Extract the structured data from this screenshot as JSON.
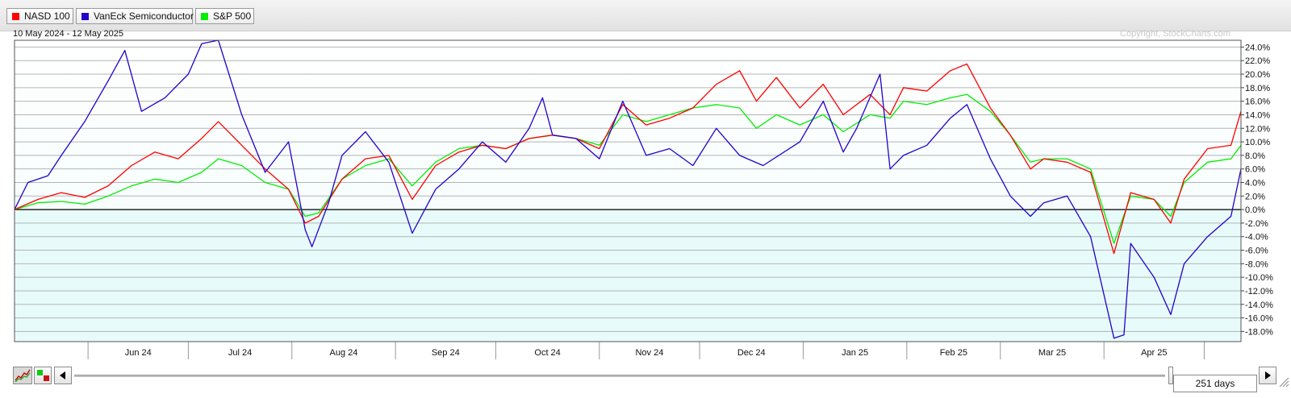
{
  "legend": [
    {
      "label": "NASD 100",
      "color": "#ff0000"
    },
    {
      "label": "VanEck Semiconductor",
      "color": "#2200cc"
    },
    {
      "label": "S&P 500",
      "color": "#00ee00"
    }
  ],
  "date_range": "10 May 2024 - 12 May 2025",
  "copyright": "Copyright, StockCharts.com",
  "period_label": "251 days",
  "chart_data": {
    "type": "line",
    "title": "",
    "x_range": [
      "2024-05-10",
      "2025-05-12"
    ],
    "x_tick_labels": [
      "Jun 24",
      "Jul 24",
      "Aug 24",
      "Sep 24",
      "Oct 24",
      "Nov 24",
      "Dec 24",
      "Jan 25",
      "Feb 25",
      "Mar 25",
      "Apr 25"
    ],
    "y_tick_labels": [
      "24.0%",
      "22.0%",
      "20.0%",
      "18.0%",
      "16.0%",
      "14.0%",
      "12.0%",
      "10.0%",
      "8.0%",
      "6.0%",
      "4.0%",
      "2.0%",
      "0.0%",
      "-2.0%",
      "-4.0%",
      "-6.0%",
      "-8.0%",
      "-10.0%",
      "-12.0%",
      "-14.0%",
      "-16.0%",
      "-18.0%"
    ],
    "ylim": [
      -19.5,
      25
    ],
    "y_unit": "%",
    "grid": true,
    "legend_position": "top-left",
    "series": [
      {
        "name": "NASD 100",
        "color": "#ff0000",
        "points": [
          [
            "2024-05-10",
            0.0
          ],
          [
            "2024-05-17",
            1.5
          ],
          [
            "2024-05-24",
            2.5
          ],
          [
            "2024-05-31",
            1.8
          ],
          [
            "2024-06-07",
            3.5
          ],
          [
            "2024-06-14",
            6.5
          ],
          [
            "2024-06-21",
            8.5
          ],
          [
            "2024-06-28",
            7.5
          ],
          [
            "2024-07-05",
            10.5
          ],
          [
            "2024-07-10",
            13.0
          ],
          [
            "2024-07-17",
            9.5
          ],
          [
            "2024-07-24",
            6.0
          ],
          [
            "2024-07-31",
            3.0
          ],
          [
            "2024-08-05",
            -2.0
          ],
          [
            "2024-08-09",
            -1.0
          ],
          [
            "2024-08-16",
            4.5
          ],
          [
            "2024-08-23",
            7.5
          ],
          [
            "2024-08-30",
            8.0
          ],
          [
            "2024-09-06",
            1.5
          ],
          [
            "2024-09-13",
            6.5
          ],
          [
            "2024-09-20",
            8.5
          ],
          [
            "2024-09-27",
            9.5
          ],
          [
            "2024-10-04",
            9.0
          ],
          [
            "2024-10-11",
            10.5
          ],
          [
            "2024-10-18",
            11.0
          ],
          [
            "2024-10-25",
            10.5
          ],
          [
            "2024-11-01",
            9.0
          ],
          [
            "2024-11-08",
            15.5
          ],
          [
            "2024-11-15",
            12.5
          ],
          [
            "2024-11-22",
            13.5
          ],
          [
            "2024-11-29",
            15.0
          ],
          [
            "2024-12-06",
            18.5
          ],
          [
            "2024-12-13",
            20.5
          ],
          [
            "2024-12-18",
            16.0
          ],
          [
            "2024-12-24",
            19.5
          ],
          [
            "2024-12-31",
            15.0
          ],
          [
            "2025-01-07",
            18.5
          ],
          [
            "2025-01-13",
            14.0
          ],
          [
            "2025-01-21",
            17.0
          ],
          [
            "2025-01-27",
            14.0
          ],
          [
            "2025-01-31",
            18.0
          ],
          [
            "2025-02-07",
            17.5
          ],
          [
            "2025-02-14",
            20.5
          ],
          [
            "2025-02-19",
            21.5
          ],
          [
            "2025-02-26",
            15.0
          ],
          [
            "2025-03-04",
            11.0
          ],
          [
            "2025-03-10",
            6.0
          ],
          [
            "2025-03-14",
            7.5
          ],
          [
            "2025-03-21",
            7.0
          ],
          [
            "2025-03-28",
            5.5
          ],
          [
            "2025-04-04",
            -6.5
          ],
          [
            "2025-04-09",
            2.5
          ],
          [
            "2025-04-16",
            1.5
          ],
          [
            "2025-04-21",
            -2.0
          ],
          [
            "2025-04-25",
            4.5
          ],
          [
            "2025-05-02",
            9.0
          ],
          [
            "2025-05-09",
            9.5
          ],
          [
            "2025-05-12",
            14.5
          ]
        ]
      },
      {
        "name": "VanEck Semiconductor",
        "color": "#2200cc",
        "points": [
          [
            "2024-05-10",
            0.0
          ],
          [
            "2024-05-14",
            4.0
          ],
          [
            "2024-05-20",
            5.0
          ],
          [
            "2024-05-24",
            8.0
          ],
          [
            "2024-05-31",
            13.0
          ],
          [
            "2024-06-07",
            19.0
          ],
          [
            "2024-06-12",
            23.5
          ],
          [
            "2024-06-17",
            14.5
          ],
          [
            "2024-06-24",
            16.5
          ],
          [
            "2024-07-01",
            20.0
          ],
          [
            "2024-07-05",
            24.5
          ],
          [
            "2024-07-10",
            25.0
          ],
          [
            "2024-07-17",
            14.0
          ],
          [
            "2024-07-24",
            5.5
          ],
          [
            "2024-07-31",
            10.0
          ],
          [
            "2024-08-05",
            -3.0
          ],
          [
            "2024-08-07",
            -5.5
          ],
          [
            "2024-08-12",
            1.0
          ],
          [
            "2024-08-16",
            8.0
          ],
          [
            "2024-08-23",
            11.5
          ],
          [
            "2024-08-30",
            7.0
          ],
          [
            "2024-09-06",
            -3.5
          ],
          [
            "2024-09-13",
            3.0
          ],
          [
            "2024-09-20",
            6.0
          ],
          [
            "2024-09-27",
            10.0
          ],
          [
            "2024-10-04",
            7.0
          ],
          [
            "2024-10-11",
            12.0
          ],
          [
            "2024-10-15",
            16.5
          ],
          [
            "2024-10-18",
            11.0
          ],
          [
            "2024-10-25",
            10.5
          ],
          [
            "2024-11-01",
            7.5
          ],
          [
            "2024-11-08",
            16.0
          ],
          [
            "2024-11-15",
            8.0
          ],
          [
            "2024-11-22",
            9.0
          ],
          [
            "2024-11-29",
            6.5
          ],
          [
            "2024-12-06",
            12.0
          ],
          [
            "2024-12-13",
            8.0
          ],
          [
            "2024-12-20",
            6.5
          ],
          [
            "2024-12-31",
            10.0
          ],
          [
            "2025-01-07",
            16.0
          ],
          [
            "2025-01-13",
            8.5
          ],
          [
            "2025-01-17",
            12.0
          ],
          [
            "2025-01-24",
            20.0
          ],
          [
            "2025-01-27",
            6.0
          ],
          [
            "2025-01-31",
            8.0
          ],
          [
            "2025-02-07",
            9.5
          ],
          [
            "2025-02-14",
            13.5
          ],
          [
            "2025-02-19",
            15.5
          ],
          [
            "2025-02-26",
            7.5
          ],
          [
            "2025-03-04",
            2.0
          ],
          [
            "2025-03-10",
            -1.0
          ],
          [
            "2025-03-14",
            1.0
          ],
          [
            "2025-03-21",
            2.0
          ],
          [
            "2025-03-28",
            -4.0
          ],
          [
            "2025-04-04",
            -19.0
          ],
          [
            "2025-04-07",
            -18.5
          ],
          [
            "2025-04-09",
            -5.0
          ],
          [
            "2025-04-16",
            -10.0
          ],
          [
            "2025-04-21",
            -15.5
          ],
          [
            "2025-04-25",
            -8.0
          ],
          [
            "2025-05-02",
            -4.0
          ],
          [
            "2025-05-09",
            -1.0
          ],
          [
            "2025-05-12",
            6.0
          ]
        ]
      },
      {
        "name": "S&P 500",
        "color": "#00ee00",
        "points": [
          [
            "2024-05-10",
            0.0
          ],
          [
            "2024-05-17",
            1.0
          ],
          [
            "2024-05-24",
            1.2
          ],
          [
            "2024-05-31",
            0.8
          ],
          [
            "2024-06-07",
            2.0
          ],
          [
            "2024-06-14",
            3.5
          ],
          [
            "2024-06-21",
            4.5
          ],
          [
            "2024-06-28",
            4.0
          ],
          [
            "2024-07-05",
            5.5
          ],
          [
            "2024-07-10",
            7.5
          ],
          [
            "2024-07-17",
            6.5
          ],
          [
            "2024-07-24",
            4.0
          ],
          [
            "2024-07-31",
            3.0
          ],
          [
            "2024-08-05",
            -1.0
          ],
          [
            "2024-08-09",
            -0.5
          ],
          [
            "2024-08-16",
            4.5
          ],
          [
            "2024-08-23",
            6.5
          ],
          [
            "2024-08-30",
            7.5
          ],
          [
            "2024-09-06",
            3.5
          ],
          [
            "2024-09-13",
            7.0
          ],
          [
            "2024-09-20",
            9.0
          ],
          [
            "2024-09-27",
            9.5
          ],
          [
            "2024-10-04",
            9.0
          ],
          [
            "2024-10-11",
            10.5
          ],
          [
            "2024-10-18",
            11.0
          ],
          [
            "2024-10-25",
            10.5
          ],
          [
            "2024-11-01",
            9.5
          ],
          [
            "2024-11-08",
            14.0
          ],
          [
            "2024-11-15",
            13.0
          ],
          [
            "2024-11-22",
            14.0
          ],
          [
            "2024-11-29",
            15.0
          ],
          [
            "2024-12-06",
            15.5
          ],
          [
            "2024-12-13",
            15.0
          ],
          [
            "2024-12-18",
            12.0
          ],
          [
            "2024-12-24",
            14.0
          ],
          [
            "2024-12-31",
            12.5
          ],
          [
            "2025-01-07",
            14.0
          ],
          [
            "2025-01-13",
            11.5
          ],
          [
            "2025-01-21",
            14.0
          ],
          [
            "2025-01-27",
            13.5
          ],
          [
            "2025-01-31",
            16.0
          ],
          [
            "2025-02-07",
            15.5
          ],
          [
            "2025-02-14",
            16.5
          ],
          [
            "2025-02-19",
            17.0
          ],
          [
            "2025-02-26",
            14.5
          ],
          [
            "2025-03-04",
            11.0
          ],
          [
            "2025-03-10",
            7.0
          ],
          [
            "2025-03-14",
            7.5
          ],
          [
            "2025-03-21",
            7.5
          ],
          [
            "2025-03-28",
            6.0
          ],
          [
            "2025-04-04",
            -5.0
          ],
          [
            "2025-04-09",
            2.0
          ],
          [
            "2025-04-16",
            1.5
          ],
          [
            "2025-04-21",
            -1.0
          ],
          [
            "2025-04-25",
            4.0
          ],
          [
            "2025-05-02",
            7.0
          ],
          [
            "2025-05-09",
            7.5
          ],
          [
            "2025-05-12",
            9.5
          ]
        ]
      }
    ]
  }
}
